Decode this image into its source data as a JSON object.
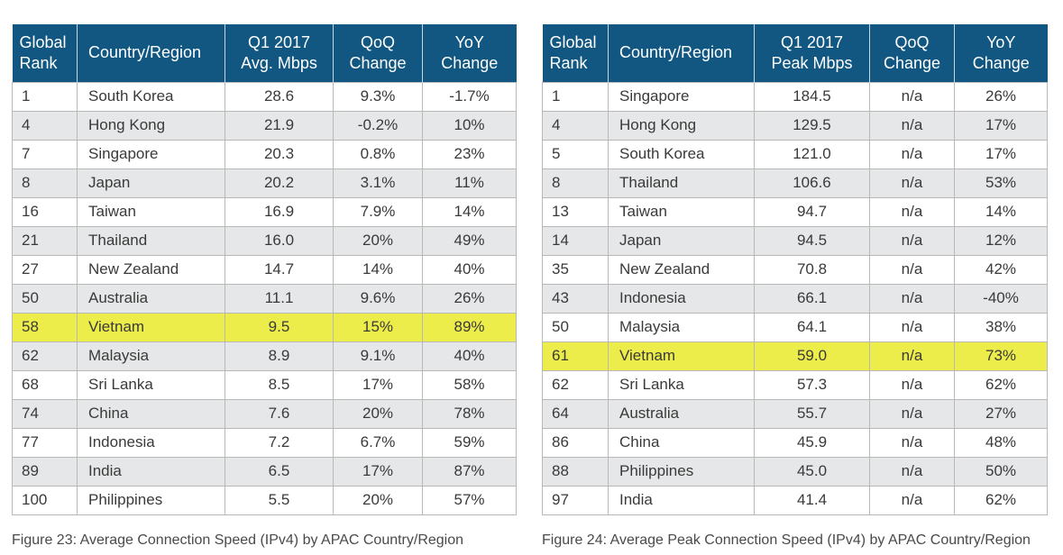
{
  "left_table": {
    "headers": {
      "rank_line1": "Global",
      "rank_line2": "Rank",
      "country": "Country/Region",
      "metric_line1": "Q1 2017",
      "metric_line2": "Avg. Mbps",
      "qoq_line1": "QoQ",
      "qoq_line2": "Change",
      "yoy_line1": "YoY",
      "yoy_line2": "Change"
    },
    "highlight_row": "Vietnam",
    "rows": [
      {
        "rank": "1",
        "country": "South Korea",
        "value": "28.6",
        "qoq": "9.3%",
        "yoy": "-1.7%"
      },
      {
        "rank": "4",
        "country": "Hong Kong",
        "value": "21.9",
        "qoq": "-0.2%",
        "yoy": "10%"
      },
      {
        "rank": "7",
        "country": "Singapore",
        "value": "20.3",
        "qoq": "0.8%",
        "yoy": "23%"
      },
      {
        "rank": "8",
        "country": "Japan",
        "value": "20.2",
        "qoq": "3.1%",
        "yoy": "11%"
      },
      {
        "rank": "16",
        "country": "Taiwan",
        "value": "16.9",
        "qoq": "7.9%",
        "yoy": "14%"
      },
      {
        "rank": "21",
        "country": "Thailand",
        "value": "16.0",
        "qoq": "20%",
        "yoy": "49%"
      },
      {
        "rank": "27",
        "country": "New Zealand",
        "value": "14.7",
        "qoq": "14%",
        "yoy": "40%"
      },
      {
        "rank": "50",
        "country": "Australia",
        "value": "11.1",
        "qoq": "9.6%",
        "yoy": "26%"
      },
      {
        "rank": "58",
        "country": "Vietnam",
        "value": "9.5",
        "qoq": "15%",
        "yoy": "89%"
      },
      {
        "rank": "62",
        "country": "Malaysia",
        "value": "8.9",
        "qoq": "9.1%",
        "yoy": "40%"
      },
      {
        "rank": "68",
        "country": "Sri Lanka",
        "value": "8.5",
        "qoq": "17%",
        "yoy": "58%"
      },
      {
        "rank": "74",
        "country": "China",
        "value": "7.6",
        "qoq": "20%",
        "yoy": "78%"
      },
      {
        "rank": "77",
        "country": "Indonesia",
        "value": "7.2",
        "qoq": "6.7%",
        "yoy": "59%"
      },
      {
        "rank": "89",
        "country": "India",
        "value": "6.5",
        "qoq": "17%",
        "yoy": "87%"
      },
      {
        "rank": "100",
        "country": "Philippines",
        "value": "5.5",
        "qoq": "20%",
        "yoy": "57%"
      }
    ],
    "caption": "Figure 23: Average Connection Speed (IPv4) by APAC Country/Region"
  },
  "right_table": {
    "headers": {
      "rank_line1": "Global",
      "rank_line2": "Rank",
      "country": "Country/Region",
      "metric_line1": "Q1 2017",
      "metric_line2": "Peak Mbps",
      "qoq_line1": "QoQ",
      "qoq_line2": "Change",
      "yoy_line1": "YoY",
      "yoy_line2": "Change"
    },
    "highlight_row": "Vietnam",
    "rows": [
      {
        "rank": "1",
        "country": "Singapore",
        "value": "184.5",
        "qoq": "n/a",
        "yoy": "26%"
      },
      {
        "rank": "4",
        "country": "Hong Kong",
        "value": "129.5",
        "qoq": "n/a",
        "yoy": "17%"
      },
      {
        "rank": "5",
        "country": "South Korea",
        "value": "121.0",
        "qoq": "n/a",
        "yoy": "17%"
      },
      {
        "rank": "8",
        "country": "Thailand",
        "value": "106.6",
        "qoq": "n/a",
        "yoy": "53%"
      },
      {
        "rank": "13",
        "country": "Taiwan",
        "value": "94.7",
        "qoq": "n/a",
        "yoy": "14%"
      },
      {
        "rank": "14",
        "country": "Japan",
        "value": "94.5",
        "qoq": "n/a",
        "yoy": "12%"
      },
      {
        "rank": "35",
        "country": "New Zealand",
        "value": "70.8",
        "qoq": "n/a",
        "yoy": "42%"
      },
      {
        "rank": "43",
        "country": "Indonesia",
        "value": "66.1",
        "qoq": "n/a",
        "yoy": "-40%"
      },
      {
        "rank": "50",
        "country": "Malaysia",
        "value": "64.1",
        "qoq": "n/a",
        "yoy": "38%"
      },
      {
        "rank": "61",
        "country": "Vietnam",
        "value": "59.0",
        "qoq": "n/a",
        "yoy": "73%"
      },
      {
        "rank": "62",
        "country": "Sri Lanka",
        "value": "57.3",
        "qoq": "n/a",
        "yoy": "62%"
      },
      {
        "rank": "64",
        "country": "Australia",
        "value": "55.7",
        "qoq": "n/a",
        "yoy": "27%"
      },
      {
        "rank": "86",
        "country": "China",
        "value": "45.9",
        "qoq": "n/a",
        "yoy": "48%"
      },
      {
        "rank": "88",
        "country": "Philippines",
        "value": "45.0",
        "qoq": "n/a",
        "yoy": "50%"
      },
      {
        "rank": "97",
        "country": "India",
        "value": "41.4",
        "qoq": "n/a",
        "yoy": "62%"
      }
    ],
    "caption": "Figure 24: Average Peak Connection Speed (IPv4) by APAC Country/Region"
  },
  "colors": {
    "header_bg": "#115782",
    "header_text": "#ffffff",
    "alt_row_bg": "#e6e7e8",
    "highlight_bg": "#eced4a"
  }
}
